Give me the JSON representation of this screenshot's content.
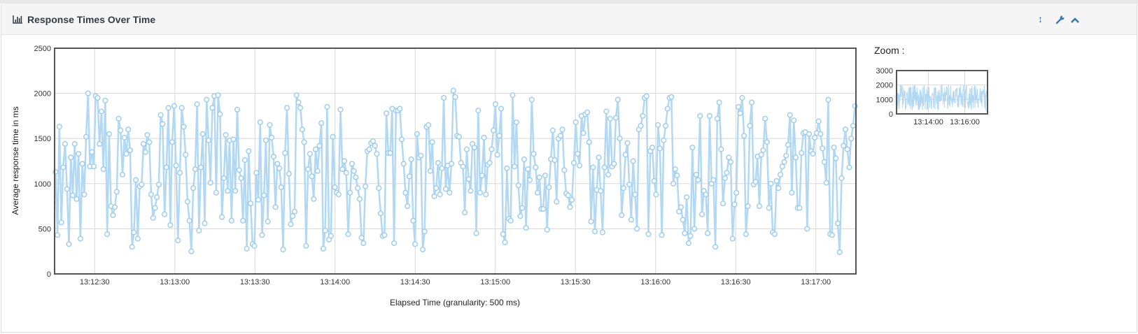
{
  "panel": {
    "title": "Response Times Over Time",
    "title_icon": "bar-chart-icon",
    "buttons": [
      {
        "name": "resize-button",
        "icon": "vertical-arrows-icon",
        "glyph": "↕"
      },
      {
        "name": "settings-button",
        "icon": "wrench-icon",
        "glyph": "🔧"
      },
      {
        "name": "collapse-button",
        "icon": "chevron-up-icon",
        "glyph": "⌃"
      }
    ]
  },
  "zoom": {
    "label": "Zoom :",
    "y_ticks": [
      "3000",
      "2000",
      "1000",
      "0"
    ],
    "x_ticks": [
      "13:14:00",
      "13:16:00"
    ]
  },
  "chart_data": {
    "type": "line",
    "title": "",
    "xlabel": "Elapsed Time (granularity: 500 ms)",
    "ylabel": "Average response time in ms",
    "xlim": [
      "13:12:15",
      "13:17:15"
    ],
    "ylim": [
      0,
      2500
    ],
    "x_ticks": [
      "13:12:30",
      "13:13:00",
      "13:13:30",
      "13:14:00",
      "13:14:30",
      "13:15:00",
      "13:15:30",
      "13:16:00",
      "13:16:30",
      "13:17:00"
    ],
    "y_ticks": [
      "0",
      "500",
      "1000",
      "1500",
      "2000",
      "2500"
    ],
    "grid": true,
    "legend": "none",
    "colors": {
      "line": "#b2d8f3",
      "marker_stroke": "#9fcdef",
      "marker_fill": "#ffffff",
      "axis": "#555555",
      "grid": "#d8d8d8"
    },
    "series": [
      {
        "values": [
          1130,
          430,
          1630,
          570,
          1180,
          1440,
          940,
          330,
          1290,
          870,
          1440,
          830,
          1330,
          390,
          1220,
          880,
          1520,
          2000,
          1190,
          1350,
          1190,
          1970,
          1950,
          1440,
          1800,
          1160,
          1920,
          440,
          1550,
          750,
          650,
          740,
          910,
          1720,
          1590,
          1100,
          1510,
          1330,
          1600,
          1370,
          300,
          460,
          1040,
          390,
          970,
          990,
          1440,
          1350,
          1540,
          1460,
          880,
          620,
          730,
          850,
          990,
          1760,
          1660,
          660,
          1180,
          1840,
          540,
          1460,
          1860,
          1200,
          370,
          1120,
          1840,
          1630,
          1320,
          800,
          590,
          250,
          950,
          1160,
          1880,
          480,
          1180,
          1550,
          560,
          1930,
          1480,
          1010,
          1840,
          1970,
          900,
          1980,
          1770,
          630,
          1060,
          1540,
          920,
          1480,
          590,
          1490,
          920,
          1820,
          1150,
          1060,
          590,
          1260,
          280,
          1360,
          780,
          330,
          310,
          1120,
          820,
          1680,
          430,
          870,
          1480,
          580,
          1650,
          1510,
          1300,
          740,
          1220,
          1170,
          960,
          270,
          1340,
          1840,
          1110,
          550,
          640,
          690,
          1980,
          1900,
          1840,
          1600,
          1460,
          310,
          1160,
          1330,
          1080,
          830,
          1380,
          1140,
          1420,
          1670,
          280,
          480,
          1850,
          380,
          420,
          1520,
          960,
          900,
          880,
          1820,
          1160,
          1250,
          1120,
          440,
          900,
          1220,
          1140,
          1070,
          950,
          830,
          400,
          340,
          970,
          1360,
          1380,
          1450,
          1470,
          1420,
          1330,
          950,
          670,
          420,
          430,
          1780,
          1340,
          1340,
          1830,
          340,
          1810,
          1810,
          1830,
          1490,
          1220,
          900,
          750,
          1080,
          1270,
          590,
          330,
          1550,
          1290,
          1310,
          270,
          470,
          1630,
          1650,
          1140,
          1460,
          860,
          950,
          1230,
          880,
          1170,
          1950,
          940,
          1200,
          900,
          1220,
          2030,
          1960,
          1530,
          1520,
          1230,
          1190,
          680,
          1380,
          1050,
          920,
          1440,
          1400,
          450,
          1810,
          900,
          1090,
          1510,
          880,
          1210,
          1230,
          1380,
          1590,
          1880,
          1320,
          1530,
          1830,
          440,
          350,
          1170,
          610,
          590,
          1980,
          1190,
          1680,
          980,
          640,
          730,
          1270,
          510,
          1160,
          1040,
          1930,
          1330,
          1180,
          900,
          1070,
          720,
          720,
          1090,
          490,
          960,
          1270,
          1590,
          1260,
          800,
          1500,
          1530,
          1600,
          1150,
          890,
          870,
          740,
          820,
          1230,
          1680,
          1330,
          1200,
          1750,
          1560,
          1770,
          1790,
          1460,
          580,
          1180,
          470,
          930,
          1290,
          920,
          460,
          1180,
          1800,
          1100,
          1720,
          1190,
          1220,
          1730,
          1930,
          1500,
          650,
          950,
          1320,
          1450,
          990,
          600,
          1250,
          880,
          500,
          1600,
          1640,
          1750,
          1950,
          1970,
          440,
          1360,
          1400,
          1030,
          880,
          1650,
          1390,
          430,
          1480,
          1640,
          1830,
          1950,
          1960,
          1000,
          1160,
          1090,
          690,
          740,
          600,
          450,
          850,
          340,
          420,
          1400,
          500,
          1100,
          1040,
          1750,
          660,
          920,
          880,
          450,
          1750,
          1000,
          1040,
          300,
          1720,
          1900,
          1380,
          780,
          1060,
          1120,
          1290,
          1240,
          390,
          770,
          900,
          1850,
          1780,
          1950,
          1530,
          440,
          750,
          1640,
          1900,
          990,
          1020,
          1300,
          750,
          1320,
          1370,
          1720,
          1460,
          730,
          1000,
          460,
          440,
          1030,
          950,
          1100,
          1190,
          1240,
          1310,
          1430,
          1760,
          900,
          1700,
          1290,
          730,
          730,
          1340,
          1560,
          1570,
          500,
          1550,
          1360,
          1330,
          1510,
          1560,
          1690,
          1550,
          1390,
          1240,
          1010,
          1930,
          440,
          430,
          1400,
          1280,
          560,
          240,
          1060,
          1420,
          1600,
          1380,
          1180,
          1500,
          1640,
          1860
        ]
      }
    ]
  }
}
